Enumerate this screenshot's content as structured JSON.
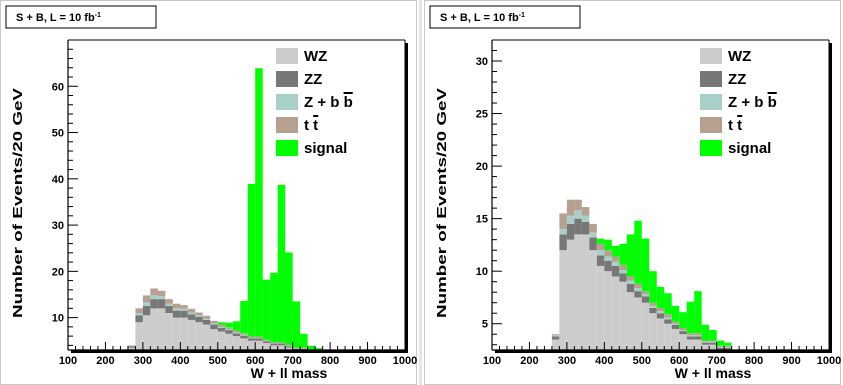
{
  "chart_data": [
    {
      "type": "bar",
      "stacked": true,
      "title": "S + B, L = 10 fb",
      "title_sup": "-1",
      "xlabel": "W + ll mass",
      "ylabel": "Number of Events/20 GeV",
      "xlim": [
        100,
        1000
      ],
      "ylim": [
        3,
        70
      ],
      "x_ticks": [
        100,
        200,
        300,
        400,
        500,
        600,
        700,
        800,
        900,
        1000
      ],
      "y_ticks": [
        10,
        20,
        30,
        40,
        50,
        60
      ],
      "bin_width": 20,
      "x": [
        260,
        280,
        300,
        320,
        340,
        360,
        380,
        400,
        420,
        440,
        460,
        480,
        500,
        520,
        540,
        560,
        580,
        600,
        620,
        640,
        660,
        680,
        700,
        720,
        740,
        760,
        780,
        800,
        820
      ],
      "legend_position": "top-right",
      "series": [
        {
          "name": "WZ",
          "color": "#cccccc",
          "values": [
            3.5,
            9,
            10.5,
            12,
            12,
            11,
            10,
            10,
            9.5,
            9,
            8.5,
            7.5,
            7,
            6.5,
            6,
            5.5,
            5,
            5,
            4.5,
            4,
            4,
            3.5,
            3,
            3,
            2.5,
            2.5,
            2,
            1.5,
            1
          ]
        },
        {
          "name": "ZZ",
          "color": "#777777",
          "values": [
            0.3,
            1.5,
            2,
            2,
            2,
            1.5,
            1.5,
            1.5,
            1.2,
            1.2,
            1,
            1,
            0.8,
            0.8,
            0.6,
            0.6,
            0.5,
            0.5,
            0.4,
            0.4,
            0.4,
            0.3,
            0.3,
            0.3,
            0.2,
            0.2,
            0.2,
            0.1,
            0.1
          ]
        },
        {
          "name": "Z + b b",
          "color": "#a8d0c8",
          "values": [
            0.1,
            0.5,
            0.8,
            0.8,
            0.6,
            0.5,
            0.5,
            0.4,
            0.4,
            0.3,
            0.3,
            0.3,
            0.2,
            0.2,
            0.2,
            0.2,
            0.1,
            0.1,
            0.1,
            0.1,
            0.1,
            0.1,
            0.1,
            0.1,
            0.1,
            0.1,
            0,
            0,
            0
          ]
        },
        {
          "name": "t t",
          "color": "#b8a090",
          "values": [
            0.1,
            1,
            1.5,
            1.5,
            1.2,
            1,
            1,
            0.8,
            0.8,
            0.6,
            0.6,
            0.5,
            0.5,
            0.4,
            0.4,
            0.3,
            0.3,
            0.3,
            0.2,
            0.2,
            0.2,
            0.2,
            0.1,
            0.1,
            0.1,
            0.1,
            0.1,
            0,
            0
          ]
        },
        {
          "name": "signal",
          "color": "#00ff00",
          "values": [
            0,
            0,
            0,
            0,
            0,
            0,
            0,
            0,
            0,
            0,
            0,
            0,
            0.5,
            1,
            2,
            7,
            33,
            58,
            13,
            15,
            34,
            20,
            10,
            3,
            1,
            0.5,
            0.3,
            0,
            0
          ]
        }
      ]
    },
    {
      "type": "bar",
      "stacked": true,
      "title": "S + B, L = 10 fb",
      "title_sup": "-1",
      "xlabel": "W + ll mass",
      "ylabel": "Number of Events/20 GeV",
      "xlim": [
        100,
        1000
      ],
      "ylim": [
        2.5,
        32
      ],
      "x_ticks": [
        100,
        200,
        300,
        400,
        500,
        600,
        700,
        800,
        900,
        1000
      ],
      "y_ticks": [
        5,
        10,
        15,
        20,
        25,
        30
      ],
      "bin_width": 20,
      "x": [
        260,
        280,
        300,
        320,
        340,
        360,
        380,
        400,
        420,
        440,
        460,
        480,
        500,
        520,
        540,
        560,
        580,
        600,
        620,
        640,
        660,
        680,
        700,
        720,
        740,
        760,
        780,
        800,
        820,
        840
      ],
      "legend_position": "top-right",
      "series": [
        {
          "name": "WZ",
          "color": "#cccccc",
          "values": [
            3.5,
            12,
            13,
            13.5,
            13.5,
            12,
            10.5,
            10,
            9.5,
            9,
            8,
            7.5,
            7,
            6,
            5.5,
            5,
            4.5,
            4,
            3.5,
            3.5,
            3,
            3,
            2.5,
            2.5,
            2,
            2,
            1.5,
            1.5,
            1,
            1
          ]
        },
        {
          "name": "ZZ",
          "color": "#777777",
          "values": [
            0.3,
            1.5,
            1.5,
            1.5,
            1.2,
            1.2,
            1,
            1,
            1,
            0.8,
            0.8,
            0.6,
            0.6,
            0.5,
            0.5,
            0.4,
            0.4,
            0.3,
            0.3,
            0.3,
            0.2,
            0.2,
            0.2,
            0.2,
            0.1,
            0.1,
            0.1,
            0.1,
            0,
            0
          ]
        },
        {
          "name": "Z + b b",
          "color": "#a8d0c8",
          "values": [
            0.1,
            0.5,
            0.8,
            0.8,
            0.6,
            0.5,
            0.5,
            0.4,
            0.4,
            0.3,
            0.3,
            0.3,
            0.2,
            0.2,
            0.2,
            0.2,
            0.1,
            0.1,
            0.1,
            0.1,
            0.1,
            0.1,
            0.1,
            0.1,
            0,
            0,
            0,
            0,
            0,
            0
          ]
        },
        {
          "name": "t t",
          "color": "#b8a090",
          "values": [
            0.1,
            1.5,
            1.5,
            1,
            0.8,
            0.8,
            0.6,
            0.6,
            0.5,
            0.5,
            0.4,
            0.4,
            0.3,
            0.3,
            0.3,
            0.3,
            0.2,
            0.2,
            0.2,
            0.2,
            0.1,
            0.1,
            0.1,
            0.1,
            0.1,
            0,
            0,
            0,
            0,
            0
          ]
        },
        {
          "name": "signal",
          "color": "#00ff00",
          "values": [
            0,
            0,
            0,
            0,
            0,
            0,
            0.5,
            1,
            1,
            2,
            4,
            6,
            5,
            3,
            2,
            2,
            1.5,
            1.5,
            3,
            4,
            1.5,
            1,
            0.5,
            0.3,
            0.2,
            0.1,
            0,
            0,
            0,
            0
          ]
        }
      ]
    }
  ]
}
